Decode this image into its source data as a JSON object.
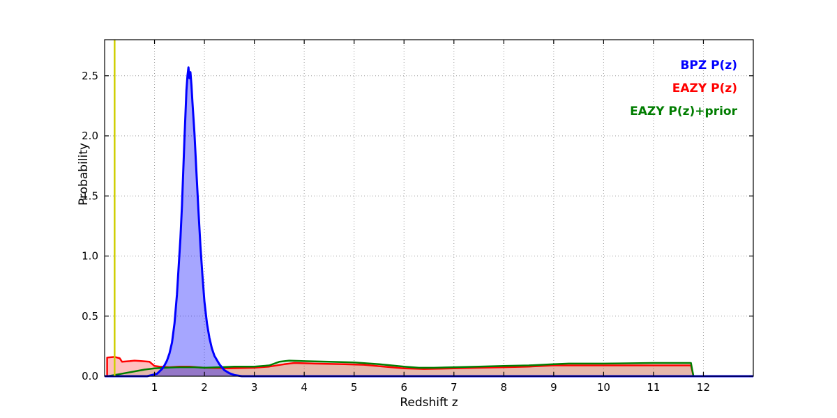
{
  "chart_data": {
    "type": "area",
    "title": "",
    "xlabel": "Redshift z",
    "ylabel": "Probability",
    "xlim": [
      0,
      13
    ],
    "ylim": [
      0,
      2.8
    ],
    "grid": true,
    "xticks": {
      "values": [
        1,
        2,
        3,
        4,
        5,
        6,
        7,
        8,
        9,
        10,
        11,
        12
      ],
      "labels": [
        "1",
        "2",
        "3",
        "4",
        "5",
        "6",
        "7",
        "8",
        "9",
        "10",
        "11",
        "12"
      ]
    },
    "yticks": {
      "values": [
        0.0,
        0.5,
        1.0,
        1.5,
        2.0,
        2.5
      ],
      "labels": [
        "0.0",
        "0.5",
        "1.0",
        "1.5",
        "2.0",
        "2.5"
      ]
    },
    "legend_position": "upper right",
    "series": [
      {
        "name": "EAZY P(z)",
        "color": "#ff0000",
        "fill_opacity": 0.25,
        "line_width": 2.5,
        "points": [
          [
            0.05,
            0.0
          ],
          [
            0.05,
            0.155
          ],
          [
            0.2,
            0.16
          ],
          [
            0.3,
            0.15
          ],
          [
            0.35,
            0.12
          ],
          [
            0.5,
            0.125
          ],
          [
            0.6,
            0.13
          ],
          [
            0.75,
            0.125
          ],
          [
            0.9,
            0.12
          ],
          [
            1.0,
            0.085
          ],
          [
            1.1,
            0.08
          ],
          [
            1.3,
            0.075
          ],
          [
            1.5,
            0.08
          ],
          [
            1.7,
            0.08
          ],
          [
            2.0,
            0.07
          ],
          [
            2.5,
            0.065
          ],
          [
            3.0,
            0.07
          ],
          [
            3.3,
            0.08
          ],
          [
            3.6,
            0.1
          ],
          [
            3.8,
            0.11
          ],
          [
            4.2,
            0.105
          ],
          [
            4.8,
            0.1
          ],
          [
            5.2,
            0.095
          ],
          [
            5.6,
            0.08
          ],
          [
            6.0,
            0.065
          ],
          [
            6.4,
            0.06
          ],
          [
            7.0,
            0.065
          ],
          [
            7.5,
            0.07
          ],
          [
            8.0,
            0.075
          ],
          [
            8.5,
            0.08
          ],
          [
            9.0,
            0.09
          ],
          [
            9.3,
            0.09
          ],
          [
            10.0,
            0.09
          ],
          [
            11.0,
            0.09
          ],
          [
            11.75,
            0.09
          ],
          [
            11.8,
            0.0
          ]
        ]
      },
      {
        "name": "EAZY P(z)+prior",
        "color": "#007d00",
        "fill_opacity": 0.1,
        "line_width": 2.5,
        "points": [
          [
            0.05,
            0.0
          ],
          [
            0.2,
            0.01
          ],
          [
            0.4,
            0.025
          ],
          [
            0.6,
            0.04
          ],
          [
            0.8,
            0.055
          ],
          [
            1.0,
            0.065
          ],
          [
            1.2,
            0.07
          ],
          [
            1.5,
            0.075
          ],
          [
            1.8,
            0.075
          ],
          [
            2.0,
            0.07
          ],
          [
            2.3,
            0.075
          ],
          [
            2.6,
            0.08
          ],
          [
            3.0,
            0.08
          ],
          [
            3.3,
            0.09
          ],
          [
            3.5,
            0.12
          ],
          [
            3.7,
            0.13
          ],
          [
            4.0,
            0.125
          ],
          [
            4.5,
            0.12
          ],
          [
            5.0,
            0.115
          ],
          [
            5.5,
            0.1
          ],
          [
            6.0,
            0.08
          ],
          [
            6.3,
            0.07
          ],
          [
            6.6,
            0.07
          ],
          [
            7.0,
            0.075
          ],
          [
            7.5,
            0.08
          ],
          [
            8.0,
            0.085
          ],
          [
            8.5,
            0.09
          ],
          [
            9.0,
            0.1
          ],
          [
            9.3,
            0.105
          ],
          [
            10.0,
            0.105
          ],
          [
            11.0,
            0.11
          ],
          [
            11.5,
            0.11
          ],
          [
            11.75,
            0.11
          ],
          [
            11.8,
            0.0
          ]
        ]
      },
      {
        "name": "BPZ P(z)",
        "color": "#0000ff",
        "fill_opacity": 0.35,
        "line_width": 3,
        "points": [
          [
            0.0,
            0.0
          ],
          [
            0.85,
            0.0
          ],
          [
            0.95,
            0.01
          ],
          [
            1.05,
            0.02
          ],
          [
            1.1,
            0.04
          ],
          [
            1.15,
            0.06
          ],
          [
            1.2,
            0.09
          ],
          [
            1.25,
            0.13
          ],
          [
            1.3,
            0.19
          ],
          [
            1.35,
            0.28
          ],
          [
            1.4,
            0.44
          ],
          [
            1.45,
            0.68
          ],
          [
            1.5,
            1.02
          ],
          [
            1.52,
            1.15
          ],
          [
            1.55,
            1.42
          ],
          [
            1.58,
            1.75
          ],
          [
            1.6,
            1.98
          ],
          [
            1.62,
            2.18
          ],
          [
            1.64,
            2.38
          ],
          [
            1.66,
            2.5
          ],
          [
            1.68,
            2.57
          ],
          [
            1.7,
            2.48
          ],
          [
            1.72,
            2.53
          ],
          [
            1.74,
            2.42
          ],
          [
            1.76,
            2.28
          ],
          [
            1.8,
            2.02
          ],
          [
            1.84,
            1.7
          ],
          [
            1.88,
            1.38
          ],
          [
            1.92,
            1.08
          ],
          [
            1.96,
            0.84
          ],
          [
            2.0,
            0.62
          ],
          [
            2.05,
            0.44
          ],
          [
            2.1,
            0.32
          ],
          [
            2.15,
            0.23
          ],
          [
            2.2,
            0.17
          ],
          [
            2.3,
            0.1
          ],
          [
            2.4,
            0.05
          ],
          [
            2.5,
            0.025
          ],
          [
            2.6,
            0.01
          ],
          [
            2.75,
            0.0
          ],
          [
            13.0,
            0.0
          ]
        ]
      }
    ],
    "legend_entries": [
      {
        "label": "BPZ P(z)",
        "color": "#0000ff"
      },
      {
        "label": "EAZY P(z)",
        "color": "#ff0000"
      },
      {
        "label": "EAZY P(z)+prior",
        "color": "#007d00"
      }
    ],
    "vlines": [
      {
        "x": 0.2,
        "color": "#cfcf00",
        "width": 2.5
      }
    ],
    "grid_color": "#999999",
    "spine_color": "#000000"
  }
}
